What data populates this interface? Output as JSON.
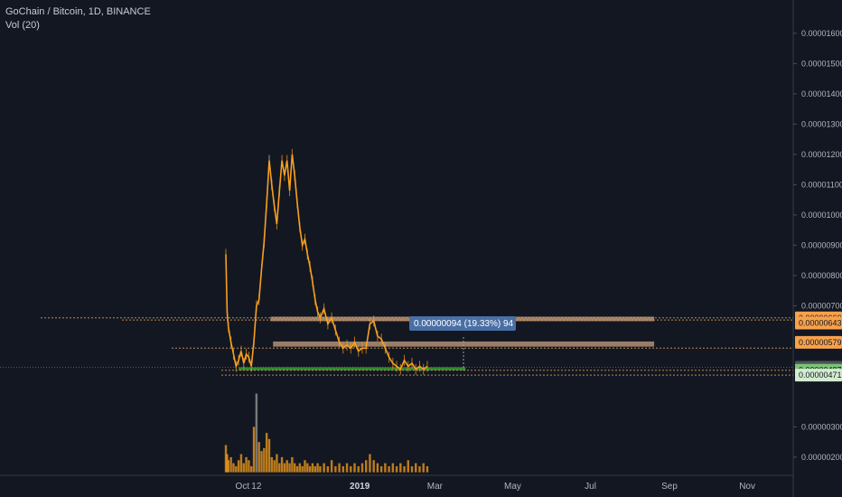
{
  "legend": {
    "symbol": "GoChain / Bitcoin, 1D, BINANCE",
    "volume": "Vol (20)"
  },
  "colors": {
    "background": "#131722",
    "candle": "#f7a01e",
    "candle_alt": "#c9c9c9",
    "box_fill": "#c8a07f",
    "support_zone": "#2e8b2e",
    "dotted_line": "#e6a55a",
    "grid": "#2a2e39"
  },
  "measure": {
    "label": "0.00000094 (19.33%) 94"
  },
  "chart_data": {
    "type": "line",
    "title": "GoChain / Bitcoin, 1D, BINANCE",
    "xlabel": "",
    "ylabel": "",
    "x_tick_labels": [
      "Oct",
      "12",
      "2019",
      "Mar",
      "May",
      "Jul",
      "Sep",
      "Nov"
    ],
    "y_tick_labels": [
      "0.00001600",
      "0.00001500",
      "0.00001400",
      "0.00001300",
      "0.00001200",
      "0.00001100",
      "0.00001000",
      "0.00000900",
      "0.00000800",
      "0.00000700",
      "0.00000300",
      "0.00000200"
    ],
    "y_ticks": [
      1.6e-05,
      1.5e-05,
      1.4e-05,
      1.3e-05,
      1.2e-05,
      1.1e-05,
      1e-05,
      9e-06,
      8e-06,
      7e-06,
      3e-06,
      2e-06
    ],
    "ylim": [
      1.4e-06,
      1.71e-05
    ],
    "xlim": [
      "2018-09-10",
      "2019-11-20"
    ],
    "series": [
      {
        "x": [
          "2018-09-18",
          "2018-09-19",
          "2018-09-20",
          "2018-09-22",
          "2018-09-24",
          "2018-09-26",
          "2018-09-28",
          "2018-09-30",
          "2018-10-02",
          "2018-10-04",
          "2018-10-06",
          "2018-10-08",
          "2018-10-10",
          "2018-10-12",
          "2018-10-14",
          "2018-10-16",
          "2018-10-18",
          "2018-10-20",
          "2018-10-22",
          "2018-10-24",
          "2018-10-26",
          "2018-10-28",
          "2018-10-30",
          "2018-11-01",
          "2018-11-03",
          "2018-11-05",
          "2018-11-07",
          "2018-11-09",
          "2018-11-11",
          "2018-11-13",
          "2018-11-15",
          "2018-11-17",
          "2018-11-19",
          "2018-11-21",
          "2018-11-23",
          "2018-11-25",
          "2018-11-27",
          "2018-11-29",
          "2018-12-01",
          "2018-12-04",
          "2018-12-07",
          "2018-12-10",
          "2018-12-13",
          "2018-12-16",
          "2018-12-19",
          "2018-12-22",
          "2018-12-25",
          "2018-12-28",
          "2018-12-31",
          "2019-01-03",
          "2019-01-06",
          "2019-01-09",
          "2019-01-12",
          "2019-01-15",
          "2019-01-18",
          "2019-01-21",
          "2019-01-24",
          "2019-01-27",
          "2019-01-30",
          "2019-02-02",
          "2019-02-05",
          "2019-02-08",
          "2019-02-11",
          "2019-02-14",
          "2019-02-17",
          "2019-02-20",
          "2019-02-23"
        ],
        "values": [
          8.7e-06,
          6.8e-06,
          6.3e-06,
          5.8e-06,
          5.4e-06,
          5e-06,
          5.2e-06,
          5.5e-06,
          5.1e-06,
          5.4e-06,
          5.3e-06,
          5e-06,
          5.8e-06,
          7e-06,
          7.2e-06,
          8.2e-06,
          9.1e-06,
          1.04e-05,
          1.18e-05,
          1.1e-05,
          1.03e-05,
          9.7e-06,
          1.08e-05,
          1.18e-05,
          1.13e-05,
          1.18e-05,
          1.08e-05,
          1.2e-05,
          1.13e-05,
          1.04e-05,
          9.6e-06,
          9e-06,
          9.2e-06,
          8.7e-06,
          8.3e-06,
          7.8e-06,
          7.2e-06,
          6.8e-06,
          6.6e-06,
          6.9e-06,
          6.4e-06,
          6.6e-06,
          6.2e-06,
          5.8e-06,
          5.6e-06,
          5.7e-06,
          5.6e-06,
          5.8e-06,
          5.5e-06,
          5.6e-06,
          5.6e-06,
          6.4e-06,
          6.5e-06,
          6e-06,
          5.9e-06,
          5.6e-06,
          5.3e-06,
          5.1e-06,
          5e-06,
          4.9e-06,
          5.2e-06,
          5e-06,
          5.1e-06,
          4.9e-06,
          5e-06,
          4.9e-06,
          5e-06
        ]
      }
    ],
    "volume": {
      "values": [
        2.4e-06,
        2.1e-06,
        1.9e-06,
        2e-06,
        1.8e-06,
        1.7e-06,
        1.9e-06,
        2.1e-06,
        1.8e-06,
        2e-06,
        1.9e-06,
        1.7e-06,
        3e-06,
        4.1e-06,
        2.5e-06,
        2.2e-06,
        2.3e-06,
        2.8e-06,
        2.6e-06,
        2e-06,
        1.9e-06,
        2.1e-06,
        1.8e-06,
        2e-06,
        1.8e-06,
        1.9e-06,
        1.8e-06,
        2e-06,
        1.8e-06,
        1.7e-06,
        1.8e-06,
        1.7e-06,
        1.9e-06,
        1.8e-06,
        1.7e-06,
        1.8e-06,
        1.7e-06,
        1.8e-06,
        1.7e-06,
        1.8e-06,
        1.7e-06,
        1.9e-06,
        1.7e-06,
        1.8e-06,
        1.7e-06,
        1.8e-06,
        1.7e-06,
        1.8e-06,
        1.7e-06,
        1.8e-06,
        1.9e-06,
        2.1e-06,
        1.9e-06,
        1.8e-06,
        1.7e-06,
        1.8e-06,
        1.7e-06,
        1.8e-06,
        1.7e-06,
        1.8e-06,
        1.7e-06,
        1.9e-06,
        1.7e-06,
        1.8e-06,
        1.7e-06,
        1.8e-06,
        1.7e-06
      ]
    },
    "price_badges": [
      {
        "label": "0.00000660",
        "value": 6.6e-06,
        "color": "#f7a14b",
        "text_color": "#131722"
      },
      {
        "label": "0.00000643",
        "value": 6.43e-06,
        "color": "#f7a14b",
        "text_color": "#131722"
      },
      {
        "label": "0.00000579",
        "value": 5.79e-06,
        "color": "#f7a14b",
        "text_color": "#131722"
      },
      {
        "label": "0.00000497",
        "value": 4.97e-06,
        "color": "#4c525e",
        "text_color": "#ffffff"
      },
      {
        "label": "0.00000487",
        "value": 4.87e-06,
        "color": "#7cc576",
        "text_color": "#131722"
      },
      {
        "label": "0.00000471",
        "value": 4.71e-06,
        "color": "#d3ecd0",
        "text_color": "#131722"
      }
    ],
    "zones": [
      {
        "kind": "resistance",
        "top": 6.64e-06,
        "bottom": 6.53e-06,
        "from": "2018-10-23",
        "to": "2019-08-20"
      },
      {
        "kind": "resistance",
        "top": 5.82e-06,
        "bottom": 5.65e-06,
        "from": "2018-10-25",
        "to": "2019-08-20"
      },
      {
        "kind": "support",
        "top": 4.97e-06,
        "bottom": 4.87e-06,
        "from": "2018-09-28",
        "to": "2019-03-25"
      }
    ],
    "grid": false,
    "legend_position": "top-left"
  }
}
